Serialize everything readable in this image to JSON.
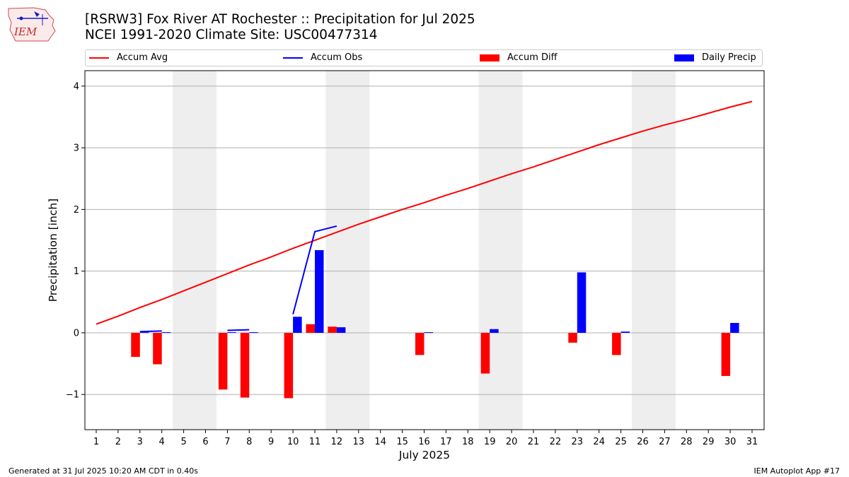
{
  "title_line1": "[RSRW3] Fox River  AT Rochester :: Precipitation for Jul 2025",
  "title_line2": "NCEI 1991-2020 Climate Site: USC00477314",
  "logo_text": "IEM",
  "footer_left": "Generated at 31 Jul 2025 10:20 AM CDT in 0.40s",
  "footer_right": "IEM Autoplot App #17",
  "colors": {
    "avg": "#ff0000",
    "obs": "#0000ff",
    "diff": "#ff0000",
    "daily": "#0000ff",
    "weekend": "#eeeeee",
    "grid": "#b0b0b0"
  },
  "legend": [
    {
      "label": "Accum Avg",
      "kind": "line",
      "color": "#ff0000"
    },
    {
      "label": "Accum Obs",
      "kind": "line",
      "color": "#0000ff"
    },
    {
      "label": "Accum Diff",
      "kind": "patch",
      "color": "#ff0000"
    },
    {
      "label": "Daily Precip",
      "kind": "patch",
      "color": "#0000ff"
    }
  ],
  "chart_data": {
    "type": "bar",
    "xlabel": "July 2025",
    "ylabel": "Precipitation [inch]",
    "ylim": [
      -1.57,
      4.25
    ],
    "yticks": [
      -1,
      0,
      1,
      2,
      3,
      4
    ],
    "ytick_labels": [
      "−1",
      "0",
      "1",
      "2",
      "3",
      "4"
    ],
    "grid": "y",
    "legend_position": "top",
    "days": [
      1,
      2,
      3,
      4,
      5,
      6,
      7,
      8,
      9,
      10,
      11,
      12,
      13,
      14,
      15,
      16,
      17,
      18,
      19,
      20,
      21,
      22,
      23,
      24,
      25,
      26,
      27,
      28,
      29,
      30,
      31
    ],
    "weekend_spans": [
      [
        5,
        6
      ],
      [
        12,
        13
      ],
      [
        19,
        20
      ],
      [
        26,
        27
      ]
    ],
    "series": [
      {
        "name": "Accum Avg",
        "kind": "line",
        "values": [
          0.14,
          0.27,
          0.41,
          0.54,
          0.68,
          0.82,
          0.96,
          1.1,
          1.23,
          1.37,
          1.5,
          1.63,
          1.76,
          1.88,
          2.0,
          2.11,
          2.23,
          2.34,
          2.46,
          2.58,
          2.69,
          2.81,
          2.93,
          3.05,
          3.16,
          3.27,
          3.37,
          3.46,
          3.56,
          3.66,
          3.75
        ]
      },
      {
        "name": "Accum Obs",
        "kind": "line",
        "segments": [
          {
            "x": [
              3,
              4
            ],
            "y": [
              0.02,
              0.03
            ]
          },
          {
            "x": [
              7,
              8
            ],
            "y": [
              0.04,
              0.05
            ]
          },
          {
            "x": [
              10,
              11,
              12
            ],
            "y": [
              0.3,
              1.64,
              1.73
            ]
          }
        ]
      },
      {
        "name": "Accum Diff",
        "kind": "bar",
        "values": [
          null,
          null,
          -0.39,
          -0.51,
          null,
          null,
          -0.92,
          -1.05,
          null,
          -1.06,
          0.14,
          0.1,
          null,
          null,
          null,
          -0.36,
          null,
          null,
          -0.66,
          null,
          null,
          null,
          -0.16,
          null,
          -0.36,
          null,
          null,
          null,
          null,
          -0.7,
          null
        ]
      },
      {
        "name": "Daily Precip",
        "kind": "bar",
        "values": [
          null,
          null,
          0.01,
          0.01,
          null,
          null,
          0.01,
          0.01,
          null,
          0.26,
          1.34,
          0.09,
          null,
          null,
          null,
          0.01,
          null,
          null,
          0.06,
          null,
          null,
          null,
          0.98,
          null,
          0.02,
          null,
          null,
          null,
          null,
          0.16,
          null
        ]
      }
    ]
  }
}
